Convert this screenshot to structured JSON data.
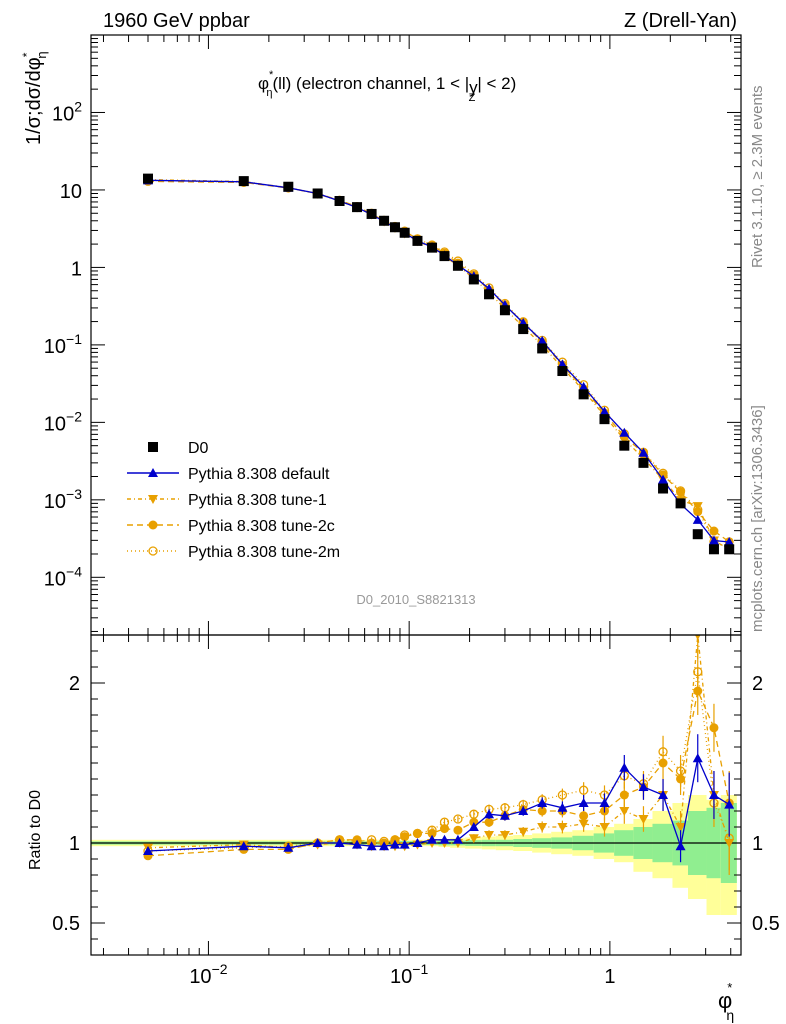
{
  "header": {
    "left": "1960 GeV ppbar",
    "right": "Z (Drell-Yan)"
  },
  "side": {
    "rivet": "Rivet 3.1.10, ≥ 2.3M events",
    "mcplots": "mcplots.cern.ch [arXiv:1306.3436]"
  },
  "chart_data": {
    "type": "line",
    "title_parts": {
      "phi": "φ",
      "star": "*",
      "eta": "η",
      "rest": "(ll) (electron channel, 1 < |",
      "y": "y",
      "Z": "Z",
      "tail": "| < 2)"
    },
    "analysis_id": "D0_2010_S8821313",
    "xlabel": {
      "main": "φ",
      "sup": "*",
      "sub": "η"
    },
    "ylabel": {
      "main": "1/σ;dσ/dφ",
      "sup": "*",
      "sub": "η"
    },
    "ratio_ylabel": "Ratio to D0",
    "x_scale": "log",
    "y_scale": "log",
    "xlim": [
      0.0026,
      4.5
    ],
    "ylim": [
      1.8e-05,
      1000
    ],
    "ratio_ylim": [
      0.3,
      2.3
    ],
    "x_ticks": [
      {
        "value": 0.01,
        "label": "10",
        "exp": "−2"
      },
      {
        "value": 0.1,
        "label": "10",
        "exp": "−1"
      },
      {
        "value": 1,
        "label": "1",
        "exp": ""
      }
    ],
    "y_ticks": [
      {
        "value": 0.0001,
        "label": "10",
        "exp": "−4"
      },
      {
        "value": 0.001,
        "label": "10",
        "exp": "−3"
      },
      {
        "value": 0.01,
        "label": "10",
        "exp": "−2"
      },
      {
        "value": 0.1,
        "label": "10",
        "exp": "−1"
      },
      {
        "value": 1,
        "label": "1",
        "exp": ""
      },
      {
        "value": 10,
        "label": "10",
        "exp": ""
      },
      {
        "value": 100,
        "label": "10",
        "exp": "2"
      }
    ],
    "ratio_ticks": [
      {
        "value": 0.5,
        "label": "0.5"
      },
      {
        "value": 1,
        "label": "1"
      },
      {
        "value": 2,
        "label": "2"
      }
    ],
    "legend_position": "lower-left",
    "x": [
      0.005,
      0.015,
      0.025,
      0.035,
      0.045,
      0.055,
      0.065,
      0.075,
      0.085,
      0.095,
      0.11,
      0.13,
      0.15,
      0.175,
      0.21,
      0.25,
      0.3,
      0.37,
      0.46,
      0.58,
      0.74,
      0.94,
      1.18,
      1.47,
      1.84,
      2.25,
      2.74,
      3.3,
      3.93
    ],
    "band_edges": [
      0.0,
      0.01,
      0.02,
      0.03,
      0.04,
      0.05,
      0.06,
      0.07,
      0.08,
      0.09,
      0.1,
      0.12,
      0.14,
      0.16,
      0.19,
      0.23,
      0.27,
      0.33,
      0.41,
      0.51,
      0.65,
      0.83,
      1.05,
      1.31,
      1.63,
      2.05,
      2.45,
      3.03,
      3.57,
      4.29
    ],
    "band_inner": [
      0.01,
      0.01,
      0.01,
      0.01,
      0.01,
      0.01,
      0.01,
      0.012,
      0.012,
      0.012,
      0.012,
      0.012,
      0.015,
      0.015,
      0.018,
      0.02,
      0.02,
      0.025,
      0.03,
      0.035,
      0.045,
      0.06,
      0.08,
      0.1,
      0.12,
      0.14,
      0.2,
      0.22,
      0.25
    ],
    "band_outer_up": [
      0.02,
      0.02,
      0.02,
      0.02,
      0.02,
      0.02,
      0.02,
      0.02,
      0.02,
      0.02,
      0.02,
      0.02,
      0.025,
      0.03,
      0.035,
      0.04,
      0.045,
      0.05,
      0.06,
      0.07,
      0.08,
      0.1,
      0.12,
      0.15,
      0.2,
      0.25,
      0.3,
      0.27,
      0.3
    ],
    "band_outer_down": [
      0.02,
      0.02,
      0.02,
      0.02,
      0.02,
      0.02,
      0.02,
      0.02,
      0.02,
      0.02,
      0.02,
      0.02,
      0.025,
      0.03,
      0.035,
      0.04,
      0.045,
      0.05,
      0.06,
      0.07,
      0.08,
      0.1,
      0.12,
      0.18,
      0.22,
      0.28,
      0.35,
      0.45,
      0.45
    ],
    "series": [
      {
        "name": "D0",
        "color": "#000000",
        "marker": "square",
        "dash": "",
        "role": "data",
        "values": [
          14.0,
          13.0,
          11.0,
          9.0,
          7.2,
          6.0,
          4.9,
          4.0,
          3.3,
          2.8,
          2.2,
          1.8,
          1.4,
          1.05,
          0.7,
          0.45,
          0.28,
          0.16,
          0.09,
          0.046,
          0.023,
          0.011,
          0.005,
          0.003,
          0.0014,
          0.0009,
          0.00036,
          0.00023,
          0.00023
        ],
        "ratio": []
      },
      {
        "name": "Pythia 8.308 default",
        "color": "#0000cc",
        "marker": "triangle-up",
        "dash": "",
        "role": "mc",
        "ratio": [
          0.95,
          0.98,
          0.97,
          1.0,
          1.0,
          0.99,
          0.98,
          0.98,
          0.99,
          0.99,
          1.0,
          1.02,
          1.02,
          1.02,
          1.1,
          1.18,
          1.17,
          1.2,
          1.25,
          1.22,
          1.25,
          1.25,
          1.47,
          1.35,
          1.3,
          0.98,
          1.53,
          1.3,
          1.24
        ],
        "ratio_err": [
          0.015,
          0.015,
          0.015,
          0.015,
          0.015,
          0.015,
          0.015,
          0.015,
          0.015,
          0.015,
          0.015,
          0.02,
          0.02,
          0.02,
          0.025,
          0.03,
          0.03,
          0.03,
          0.035,
          0.04,
          0.05,
          0.06,
          0.08,
          0.08,
          0.1,
          0.1,
          0.15,
          0.15,
          0.2
        ]
      },
      {
        "name": "Pythia 8.308 tune-1",
        "color": "#e8a000",
        "marker": "triangle-down",
        "dash": "4,3,1,3",
        "role": "mc",
        "ratio": [
          0.97,
          0.99,
          0.97,
          0.99,
          1.0,
          0.99,
          0.98,
          0.98,
          0.98,
          0.98,
          0.99,
          1.0,
          1.0,
          1.0,
          1.03,
          1.05,
          1.05,
          1.07,
          1.1,
          1.1,
          1.12,
          1.1,
          1.2,
          1.15,
          1.3,
          1.1,
          2.3,
          1.3,
          1.0
        ],
        "ratio_err": [
          0.015,
          0.015,
          0.015,
          0.015,
          0.015,
          0.015,
          0.015,
          0.015,
          0.015,
          0.015,
          0.015,
          0.02,
          0.02,
          0.02,
          0.025,
          0.03,
          0.03,
          0.03,
          0.035,
          0.04,
          0.05,
          0.06,
          0.08,
          0.08,
          0.1,
          0.1,
          0.15,
          0.15,
          0.2
        ]
      },
      {
        "name": "Pythia 8.308 tune-2c",
        "color": "#e8a000",
        "marker": "circle",
        "dash": "6,4",
        "role": "mc",
        "ratio": [
          0.92,
          0.96,
          0.96,
          1.0,
          1.02,
          1.02,
          1.0,
          1.0,
          1.02,
          1.04,
          1.06,
          1.06,
          1.09,
          1.08,
          1.13,
          1.13,
          1.17,
          1.21,
          1.2,
          1.2,
          1.17,
          1.2,
          1.3,
          1.35,
          1.5,
          1.4,
          1.95,
          1.72,
          1.25
        ],
        "ratio_err": [
          0.015,
          0.015,
          0.015,
          0.015,
          0.015,
          0.015,
          0.015,
          0.015,
          0.015,
          0.015,
          0.015,
          0.02,
          0.02,
          0.02,
          0.025,
          0.03,
          0.03,
          0.03,
          0.035,
          0.04,
          0.05,
          0.06,
          0.08,
          0.08,
          0.1,
          0.1,
          0.15,
          0.15,
          0.2
        ]
      },
      {
        "name": "Pythia 8.308 tune-2m",
        "color": "#e8a000",
        "marker": "circle-open",
        "dash": "1,3",
        "role": "mc",
        "ratio": [
          0.95,
          0.97,
          0.98,
          1.0,
          1.02,
          1.01,
          1.02,
          1.01,
          1.02,
          1.05,
          1.06,
          1.08,
          1.13,
          1.15,
          1.18,
          1.21,
          1.22,
          1.24,
          1.27,
          1.3,
          1.33,
          1.3,
          1.42,
          1.37,
          1.57,
          1.45,
          2.07,
          1.25,
          1.03
        ],
        "ratio_err": [
          0.015,
          0.015,
          0.015,
          0.015,
          0.015,
          0.015,
          0.015,
          0.015,
          0.015,
          0.015,
          0.015,
          0.02,
          0.02,
          0.02,
          0.025,
          0.03,
          0.03,
          0.03,
          0.035,
          0.04,
          0.05,
          0.06,
          0.08,
          0.08,
          0.1,
          0.1,
          0.15,
          0.15,
          0.2
        ]
      }
    ],
    "colors": {
      "band_inner": "#90ee90",
      "band_outer": "#ffff99",
      "default": "#0000cc",
      "tunes": "#e8a000",
      "watermark": "#999999"
    }
  }
}
